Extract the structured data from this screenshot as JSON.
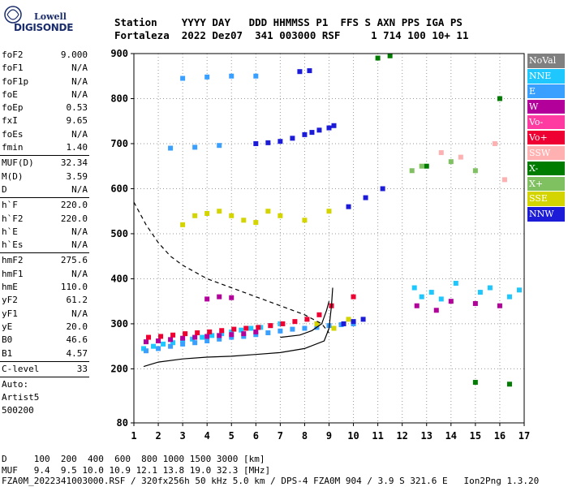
{
  "logo": {
    "top": "Lowell",
    "main": "DIGISONDE"
  },
  "header": {
    "line1": "Station    YYYY DAY   DDD HHMMSS P1  FFS S AXN PPS IGA PS",
    "line2": "Fortaleza  2022 Dez07  341 003000 RSF     1 714 100 10+ 11"
  },
  "params_group1": [
    {
      "label": "foF2",
      "value": "9.000"
    },
    {
      "label": "foF1",
      "value": "N/A"
    },
    {
      "label": "foF1p",
      "value": "N/A"
    },
    {
      "label": "foE",
      "value": "N/A"
    },
    {
      "label": "foEp",
      "value": "0.53"
    },
    {
      "label": "fxI",
      "value": "9.65"
    },
    {
      "label": "foEs",
      "value": "N/A"
    },
    {
      "label": "fmin",
      "value": "1.40"
    }
  ],
  "params_group2": [
    {
      "label": "MUF(D)",
      "value": "32.34"
    },
    {
      "label": "M(D)",
      "value": "3.59"
    },
    {
      "label": "D",
      "value": "N/A"
    }
  ],
  "params_group3": [
    {
      "label": "h`F",
      "value": "220.0"
    },
    {
      "label": "h`F2",
      "value": "220.0"
    },
    {
      "label": "h`E",
      "value": "N/A"
    },
    {
      "label": "h`Es",
      "value": "N/A"
    }
  ],
  "params_group4": [
    {
      "label": "hmF2",
      "value": "275.6"
    },
    {
      "label": "hmF1",
      "value": "N/A"
    },
    {
      "label": "hmE",
      "value": "110.0"
    },
    {
      "label": "yF2",
      "value": "61.2"
    },
    {
      "label": "yF1",
      "value": "N/A"
    },
    {
      "label": "yE",
      "value": "20.0"
    },
    {
      "label": "B0",
      "value": "46.6"
    },
    {
      "label": "B1",
      "value": "4.57"
    }
  ],
  "params_group5": [
    {
      "label": "C-level",
      "value": "33"
    }
  ],
  "autoscaling": {
    "line1": "Auto:",
    "line2": "Artist5",
    "line3": "500200"
  },
  "legend": [
    {
      "label": "NoVal",
      "color": "#808080",
      "text_color": "#ffffff"
    },
    {
      "label": "NNE",
      "color": "#1ec8ff",
      "text_color": "#ffffff"
    },
    {
      "label": "E",
      "color": "#3aa0ff",
      "text_color": "#ffffff"
    },
    {
      "label": "W",
      "color": "#b4009b",
      "text_color": "#ffffff"
    },
    {
      "label": "Vo-",
      "color": "#ff3aa0",
      "text_color": "#ffffff"
    },
    {
      "label": "Vo+",
      "color": "#ee0033",
      "text_color": "#ffffff"
    },
    {
      "label": "SSW",
      "color": "#ffb0b0",
      "text_color": "#ffffff"
    },
    {
      "label": "X-",
      "color": "#007d00",
      "text_color": "#ffffff"
    },
    {
      "label": "X+",
      "color": "#7fc060",
      "text_color": "#ffffff"
    },
    {
      "label": "SSE",
      "color": "#d4d400",
      "text_color": "#ffffff"
    },
    {
      "label": "NNW",
      "color": "#1c1cd8",
      "text_color": "#ffffff"
    }
  ],
  "bottom": {
    "line1": "D     100  200  400  600  800 1000 1500 3000 [km]",
    "line2": "MUF   9.4  9.5 10.0 10.9 12.1 13.8 19.0 32.3 [MHz]",
    "line3": "FZA0M_2022341003000.RSF / 320fx256h 50 kHz 5.0 km / DPS-4 FZA0M 904 / 3.9 S 321.6 E   Ion2Png 1.3.20"
  },
  "chart_data": {
    "type": "scatter",
    "title": "",
    "xlabel": "",
    "ylabel": "",
    "xlim": [
      1,
      17
    ],
    "ylim": [
      80,
      900
    ],
    "x_ticks": [
      1,
      2,
      3,
      4,
      5,
      6,
      7,
      8,
      9,
      10,
      11,
      12,
      13,
      14,
      15,
      16,
      17
    ],
    "y_ticks": [
      80,
      200,
      300,
      400,
      500,
      600,
      700,
      800,
      900
    ],
    "grid": "dotted",
    "series": [
      {
        "name": "NNE",
        "color": "#1ec8ff",
        "points": [
          [
            1.4,
            245
          ],
          [
            1.8,
            250
          ],
          [
            2.2,
            255
          ],
          [
            2.6,
            258
          ],
          [
            3,
            262
          ],
          [
            3.4,
            266
          ],
          [
            3.8,
            270
          ],
          [
            4.2,
            274
          ],
          [
            4.6,
            278
          ],
          [
            5,
            282
          ],
          [
            5.4,
            286
          ],
          [
            5.8,
            290
          ],
          [
            6.2,
            292
          ],
          [
            6.6,
            296
          ],
          [
            7,
            300
          ],
          [
            12.5,
            380
          ],
          [
            12.8,
            360
          ],
          [
            13.2,
            370
          ],
          [
            13.6,
            355
          ],
          [
            14.2,
            390
          ],
          [
            15.2,
            370
          ],
          [
            15.6,
            380
          ],
          [
            16.4,
            360
          ],
          [
            16.8,
            375
          ]
        ]
      },
      {
        "name": "E",
        "color": "#3aa0ff",
        "points": [
          [
            1.5,
            240
          ],
          [
            2,
            245
          ],
          [
            2.5,
            250
          ],
          [
            3,
            255
          ],
          [
            3.5,
            258
          ],
          [
            4,
            262
          ],
          [
            4.5,
            266
          ],
          [
            5,
            270
          ],
          [
            5.5,
            272
          ],
          [
            6,
            276
          ],
          [
            6.5,
            280
          ],
          [
            7,
            284
          ],
          [
            7.5,
            288
          ],
          [
            8,
            290
          ],
          [
            8.5,
            292
          ],
          [
            9,
            296
          ],
          [
            9.5,
            298
          ],
          [
            10,
            300
          ],
          [
            3,
            845
          ],
          [
            4,
            848
          ],
          [
            5,
            850
          ],
          [
            6,
            850
          ],
          [
            2.5,
            690
          ],
          [
            3.5,
            692
          ],
          [
            4.5,
            696
          ]
        ]
      },
      {
        "name": "W",
        "color": "#b4009b",
        "points": [
          [
            1.5,
            260
          ],
          [
            2,
            262
          ],
          [
            2.5,
            265
          ],
          [
            3,
            268
          ],
          [
            3.5,
            270
          ],
          [
            4,
            272
          ],
          [
            4.5,
            274
          ],
          [
            5,
            276
          ],
          [
            5.5,
            278
          ],
          [
            6,
            282
          ],
          [
            4,
            355
          ],
          [
            4.5,
            360
          ],
          [
            5,
            358
          ],
          [
            12.6,
            340
          ],
          [
            13.4,
            330
          ],
          [
            14,
            350
          ],
          [
            15,
            345
          ],
          [
            16,
            340
          ]
        ]
      },
      {
        "name": "Vo+",
        "color": "#ee0033",
        "points": [
          [
            1.6,
            270
          ],
          [
            2.1,
            272
          ],
          [
            2.6,
            275
          ],
          [
            3.1,
            278
          ],
          [
            3.6,
            280
          ],
          [
            4.1,
            282
          ],
          [
            4.6,
            285
          ],
          [
            5.1,
            288
          ],
          [
            5.6,
            290
          ],
          [
            6.1,
            292
          ],
          [
            6.6,
            296
          ],
          [
            7.1,
            300
          ],
          [
            7.6,
            305
          ],
          [
            8.1,
            310
          ],
          [
            8.6,
            320
          ],
          [
            9.1,
            340
          ],
          [
            10,
            360
          ]
        ]
      },
      {
        "name": "SSE",
        "color": "#d4d400",
        "points": [
          [
            3,
            520
          ],
          [
            3.5,
            540
          ],
          [
            4,
            545
          ],
          [
            4.5,
            550
          ],
          [
            5,
            540
          ],
          [
            5.5,
            530
          ],
          [
            6,
            525
          ],
          [
            6.5,
            550
          ],
          [
            7,
            540
          ],
          [
            8,
            530
          ],
          [
            9,
            550
          ],
          [
            8.5,
            300
          ],
          [
            9.2,
            290
          ],
          [
            9.8,
            310
          ]
        ]
      },
      {
        "name": "NNW",
        "color": "#1c1cd8",
        "points": [
          [
            6,
            700
          ],
          [
            6.5,
            702
          ],
          [
            7,
            705
          ],
          [
            7.5,
            712
          ],
          [
            8,
            720
          ],
          [
            8.3,
            725
          ],
          [
            8.6,
            730
          ],
          [
            9,
            735
          ],
          [
            9.2,
            740
          ],
          [
            9.6,
            300
          ],
          [
            10,
            305
          ],
          [
            10.4,
            310
          ],
          [
            11.2,
            600
          ],
          [
            10.5,
            580
          ],
          [
            9.8,
            560
          ],
          [
            7.8,
            860
          ],
          [
            8.2,
            862
          ]
        ]
      },
      {
        "name": "X-",
        "color": "#007d00",
        "points": [
          [
            11,
            890
          ],
          [
            11.5,
            895
          ],
          [
            13,
            650
          ],
          [
            16,
            800
          ],
          [
            15,
            170
          ],
          [
            16.4,
            166
          ]
        ]
      },
      {
        "name": "X+",
        "color": "#7fc060",
        "points": [
          [
            12.4,
            640
          ],
          [
            12.8,
            650
          ],
          [
            14,
            660
          ],
          [
            15,
            640
          ]
        ]
      },
      {
        "name": "SSW",
        "color": "#ffb0b0",
        "points": [
          [
            13.6,
            680
          ],
          [
            14.4,
            670
          ],
          [
            15.8,
            700
          ],
          [
            16.2,
            620
          ]
        ]
      }
    ],
    "curves": [
      {
        "name": "profile",
        "style": "solid",
        "points": [
          [
            1.4,
            205
          ],
          [
            2,
            215
          ],
          [
            3,
            222
          ],
          [
            4,
            226
          ],
          [
            5,
            228
          ],
          [
            6,
            232
          ],
          [
            7,
            236
          ],
          [
            8,
            245
          ],
          [
            8.8,
            262
          ],
          [
            9,
            290
          ],
          [
            9.1,
            340
          ],
          [
            9.15,
            380
          ]
        ]
      },
      {
        "name": "trace",
        "style": "dashed",
        "points": [
          [
            1,
            570
          ],
          [
            1.5,
            520
          ],
          [
            2,
            480
          ],
          [
            2.5,
            450
          ],
          [
            3,
            430
          ],
          [
            4,
            400
          ],
          [
            5,
            380
          ],
          [
            6,
            360
          ],
          [
            7,
            340
          ],
          [
            8,
            320
          ],
          [
            8.7,
            300
          ],
          [
            9,
            280
          ]
        ]
      },
      {
        "name": "profile2",
        "style": "solid",
        "points": [
          [
            7,
            270
          ],
          [
            7.8,
            275
          ],
          [
            8.3,
            285
          ],
          [
            8.7,
            300
          ],
          [
            8.9,
            330
          ],
          [
            9,
            350
          ]
        ]
      }
    ]
  }
}
